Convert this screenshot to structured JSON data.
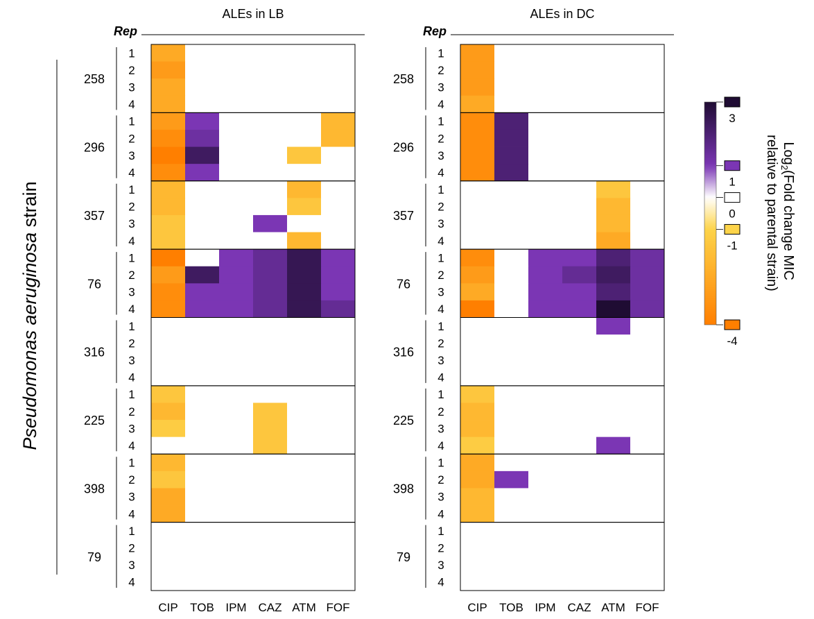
{
  "chart_data": {
    "type": "heatmap",
    "y_axis_title": "Pseudomonas aeruginosa strain",
    "y_axis_title_italic_part": "Pseudomonas aeruginosa",
    "y_axis_title_plain_part": " strain",
    "rep_label": "Rep",
    "strains": [
      "258",
      "296",
      "357",
      "76",
      "316",
      "225",
      "398",
      "79"
    ],
    "reps": [
      "1",
      "2",
      "3",
      "4"
    ],
    "antibiotics": [
      "CIP",
      "TOB",
      "IPM",
      "CAZ",
      "ATM",
      "FOF"
    ],
    "colorbar": {
      "title_prefix": "Log",
      "title_sub": "2",
      "title_line1_rest": "(Fold change MIC",
      "title_line2": "relative to parental strain)",
      "ticks": [
        3,
        1,
        0,
        -1,
        -4
      ],
      "tick_labels": [
        "3",
        "1",
        "0",
        "-1",
        "-4"
      ],
      "range": [
        -4,
        3
      ],
      "colors": {
        "-4": "#ff7f00",
        "-1": "#fdd44a",
        "0": "#ffffff",
        "1": "#7b36b4",
        "3": "#1f0c33"
      }
    },
    "panels": [
      {
        "title": "ALEs in LB",
        "values": [
          [
            -2.5,
            0,
            0,
            0,
            0,
            0
          ],
          [
            -3,
            0,
            0,
            0,
            0,
            0
          ],
          [
            -2.5,
            0,
            0,
            0,
            0,
            0
          ],
          [
            -2.5,
            0,
            0,
            0,
            0,
            0
          ],
          [
            -3,
            1,
            0,
            0,
            0,
            -2
          ],
          [
            -3.5,
            1.3,
            0,
            0,
            0,
            -2
          ],
          [
            -4,
            2.3,
            0,
            0,
            -1.5,
            0
          ],
          [
            -3.5,
            1,
            0,
            0,
            0,
            0
          ],
          [
            -2,
            0,
            0,
            0,
            -2,
            0
          ],
          [
            -2,
            0,
            0,
            0,
            -1.5,
            0
          ],
          [
            -1.5,
            0,
            0,
            1,
            0,
            0
          ],
          [
            -1.5,
            0,
            0,
            0,
            -2,
            0
          ],
          [
            -4,
            0,
            1,
            1.5,
            2.5,
            1
          ],
          [
            -3,
            2.3,
            1,
            1.5,
            2.5,
            1
          ],
          [
            -3.5,
            1,
            1,
            1.5,
            2.5,
            1
          ],
          [
            -3.5,
            1,
            1,
            1.5,
            2.5,
            1.5
          ],
          [
            0,
            0,
            0,
            0,
            0,
            0
          ],
          [
            0,
            0,
            0,
            0,
            0,
            0
          ],
          [
            0,
            0,
            0,
            0,
            0,
            0
          ],
          [
            0,
            0,
            0,
            0,
            0,
            0
          ],
          [
            -1.5,
            0,
            0,
            0,
            0,
            0
          ],
          [
            -2,
            0,
            0,
            -1.5,
            0,
            0
          ],
          [
            -1.3,
            0,
            0,
            -1.5,
            0,
            0
          ],
          [
            0,
            0,
            0,
            -1.5,
            0,
            0
          ],
          [
            -2,
            0,
            0,
            0,
            0,
            0
          ],
          [
            -1.5,
            0,
            0,
            0,
            0,
            0
          ],
          [
            -2.5,
            0,
            0,
            0,
            0,
            0
          ],
          [
            -2.5,
            0,
            0,
            0,
            0,
            0
          ],
          [
            0,
            0,
            0,
            0,
            0,
            0
          ],
          [
            0,
            0,
            0,
            0,
            0,
            0
          ],
          [
            0,
            0,
            0,
            0,
            0,
            0
          ],
          [
            0,
            0,
            0,
            0,
            0,
            0
          ]
        ]
      },
      {
        "title": "ALEs in DC",
        "values": [
          [
            -3,
            0,
            0,
            0,
            0,
            0
          ],
          [
            -3,
            0,
            0,
            0,
            0,
            0
          ],
          [
            -3,
            0,
            0,
            0,
            0,
            0
          ],
          [
            -2.5,
            0,
            0,
            0,
            0,
            0
          ],
          [
            -3.5,
            2,
            0,
            0,
            0,
            0
          ],
          [
            -3.5,
            2,
            0,
            0,
            0,
            0
          ],
          [
            -3.5,
            2,
            0,
            0,
            0,
            0
          ],
          [
            -3.5,
            2,
            0,
            0,
            0,
            0
          ],
          [
            0,
            0,
            0,
            0,
            -1.5,
            0
          ],
          [
            0,
            0,
            0,
            0,
            -2,
            0
          ],
          [
            0,
            0,
            0,
            0,
            -2,
            0
          ],
          [
            0,
            0,
            0,
            0,
            -2.5,
            0
          ],
          [
            -3.5,
            0,
            1,
            1,
            2,
            1.3
          ],
          [
            -3,
            0,
            1,
            1.5,
            2.3,
            1.3
          ],
          [
            -2.5,
            0,
            1,
            1,
            2,
            1.3
          ],
          [
            -4,
            0,
            1,
            1,
            3,
            1.3
          ],
          [
            0,
            0,
            0,
            0,
            1,
            0
          ],
          [
            0,
            0,
            0,
            0,
            0,
            0
          ],
          [
            0,
            0,
            0,
            0,
            0,
            0
          ],
          [
            0,
            0,
            0,
            0,
            0,
            0
          ],
          [
            -1.5,
            0,
            0,
            0,
            0,
            0
          ],
          [
            -2,
            0,
            0,
            0,
            0,
            0
          ],
          [
            -2,
            0,
            0,
            0,
            0,
            0
          ],
          [
            -1.3,
            0,
            0,
            0,
            1,
            0
          ],
          [
            -2.5,
            0,
            0,
            0,
            0,
            0
          ],
          [
            -2.5,
            1,
            0,
            0,
            0,
            0
          ],
          [
            -2,
            0,
            0,
            0,
            0,
            0
          ],
          [
            -2,
            0,
            0,
            0,
            0,
            0
          ],
          [
            0,
            0,
            0,
            0,
            0,
            0
          ],
          [
            0,
            0,
            0,
            0,
            0,
            0
          ],
          [
            0,
            0,
            0,
            0,
            0,
            0
          ],
          [
            0,
            0,
            0,
            0,
            0,
            0
          ]
        ]
      }
    ]
  }
}
